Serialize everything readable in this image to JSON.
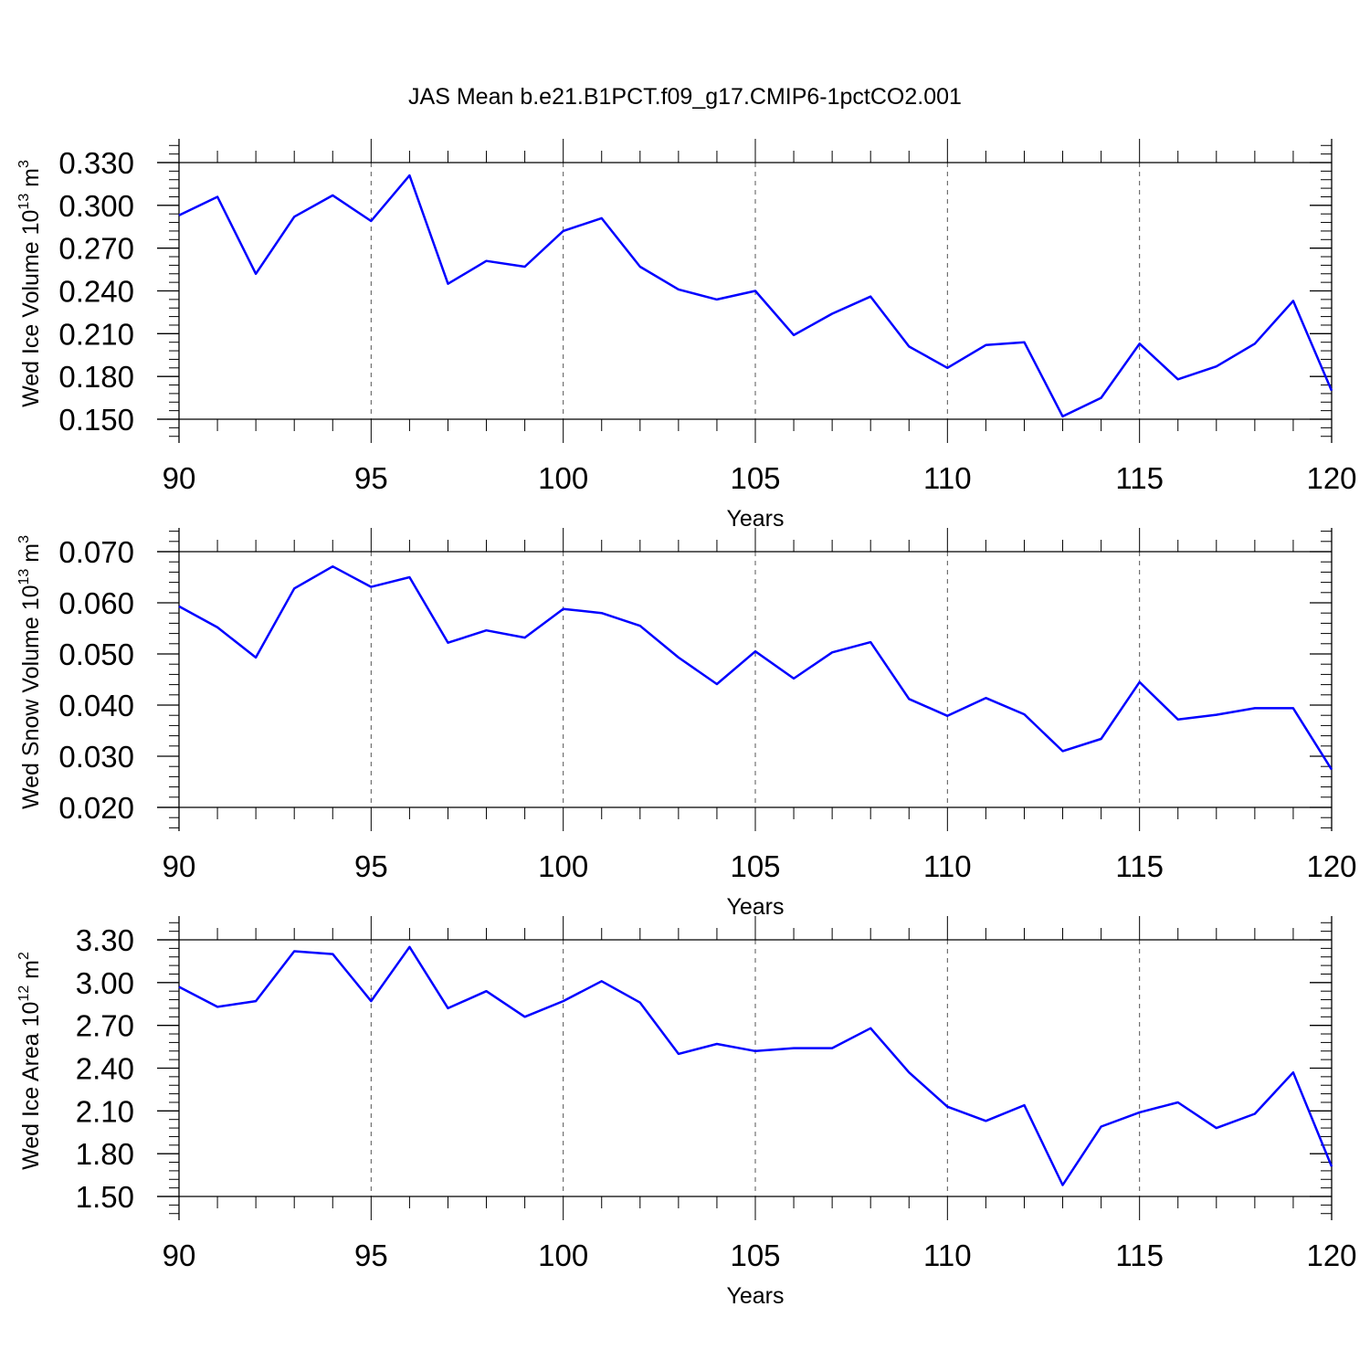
{
  "title": "JAS Mean b.e21.B1PCT.f09_g17.CMIP6-1pctCO2.001",
  "colors": {
    "line": "#0000ff",
    "axis": "#000000",
    "grid": "#555555"
  },
  "chart_data": [
    {
      "type": "line",
      "xlabel": "Years",
      "ylabel": {
        "text": "Wed Ice Volume 10",
        "exponent": "13",
        "unit": " m",
        "unit_exponent": "3"
      },
      "xlim": [
        90,
        120
      ],
      "ylim": [
        0.15,
        0.33
      ],
      "x_ticks": [
        90,
        95,
        100,
        105,
        110,
        115,
        120
      ],
      "y_ticks": [
        "0.150",
        "0.180",
        "0.210",
        "0.240",
        "0.270",
        "0.300",
        "0.330"
      ],
      "x": [
        90,
        91,
        92,
        93,
        94,
        95,
        96,
        97,
        98,
        99,
        100,
        101,
        102,
        103,
        104,
        105,
        106,
        107,
        108,
        109,
        110,
        111,
        112,
        113,
        114,
        115,
        116,
        117,
        118,
        119,
        120
      ],
      "values": [
        0.293,
        0.306,
        0.252,
        0.292,
        0.307,
        0.289,
        0.321,
        0.245,
        0.261,
        0.257,
        0.282,
        0.291,
        0.257,
        0.241,
        0.234,
        0.24,
        0.209,
        0.224,
        0.236,
        0.201,
        0.186,
        0.202,
        0.204,
        0.152,
        0.165,
        0.203,
        0.178,
        0.187,
        0.203,
        0.233,
        0.17
      ]
    },
    {
      "type": "line",
      "xlabel": "Years",
      "ylabel": {
        "text": "Wed Snow Volume 10",
        "exponent": "13",
        "unit": " m",
        "unit_exponent": "3"
      },
      "xlim": [
        90,
        120
      ],
      "ylim": [
        0.02,
        0.07
      ],
      "x_ticks": [
        90,
        95,
        100,
        105,
        110,
        115,
        120
      ],
      "y_ticks": [
        "0.020",
        "0.030",
        "0.040",
        "0.050",
        "0.060",
        "0.070"
      ],
      "x": [
        90,
        91,
        92,
        93,
        94,
        95,
        96,
        97,
        98,
        99,
        100,
        101,
        102,
        103,
        104,
        105,
        106,
        107,
        108,
        109,
        110,
        111,
        112,
        113,
        114,
        115,
        116,
        117,
        118,
        119,
        120
      ],
      "values": [
        0.0593,
        0.0552,
        0.0493,
        0.0628,
        0.0671,
        0.0631,
        0.065,
        0.0522,
        0.0546,
        0.0532,
        0.0588,
        0.058,
        0.0555,
        0.0493,
        0.0441,
        0.0505,
        0.0452,
        0.0503,
        0.0523,
        0.0412,
        0.0379,
        0.0414,
        0.0382,
        0.031,
        0.0334,
        0.0445,
        0.0372,
        0.0381,
        0.0394,
        0.0394,
        0.0274
      ]
    },
    {
      "type": "line",
      "xlabel": "Years",
      "ylabel": {
        "text": "Wed Ice Area 10",
        "exponent": "12",
        "unit": " m",
        "unit_exponent": "2"
      },
      "xlim": [
        90,
        120
      ],
      "ylim": [
        1.5,
        3.3
      ],
      "x_ticks": [
        90,
        95,
        100,
        105,
        110,
        115,
        120
      ],
      "y_ticks": [
        "1.50",
        "1.80",
        "2.10",
        "2.40",
        "2.70",
        "3.00",
        "3.30"
      ],
      "x": [
        90,
        91,
        92,
        93,
        94,
        95,
        96,
        97,
        98,
        99,
        100,
        101,
        102,
        103,
        104,
        105,
        106,
        107,
        108,
        109,
        110,
        111,
        112,
        113,
        114,
        115,
        116,
        117,
        118,
        119,
        120
      ],
      "values": [
        2.97,
        2.83,
        2.87,
        3.22,
        3.2,
        2.87,
        3.25,
        2.82,
        2.94,
        2.76,
        2.87,
        3.01,
        2.86,
        2.5,
        2.57,
        2.52,
        2.54,
        2.54,
        2.68,
        2.37,
        2.13,
        2.03,
        2.14,
        1.58,
        1.99,
        2.09,
        2.16,
        1.98,
        2.08,
        2.37,
        1.71
      ]
    }
  ]
}
